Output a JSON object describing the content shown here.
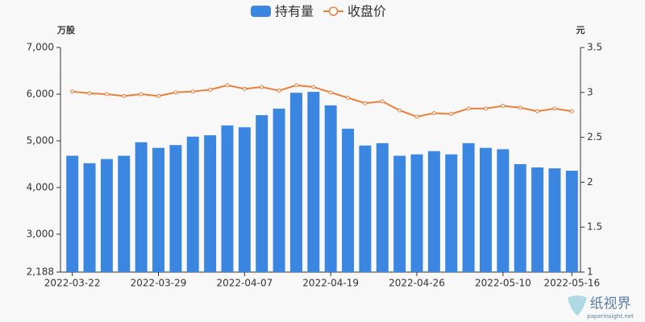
{
  "chart_data": {
    "type": "bar-line",
    "categories": [
      "2022-03-22",
      null,
      null,
      null,
      null,
      "2022-03-29",
      null,
      null,
      null,
      null,
      "2022-04-07",
      null,
      null,
      null,
      null,
      "2022-04-19",
      null,
      null,
      null,
      null,
      "2022-04-26",
      null,
      null,
      null,
      null,
      "2022-05-10",
      null,
      null,
      null,
      "2022-05-16"
    ],
    "series": [
      {
        "name": "持有量",
        "type": "bar",
        "color": "#3a86e0",
        "axis": "y",
        "values": [
          4680,
          4520,
          4610,
          4680,
          4970,
          4850,
          4910,
          5090,
          5120,
          5330,
          5290,
          5550,
          5690,
          6030,
          6050,
          5760,
          5260,
          4900,
          4950,
          4680,
          4710,
          4780,
          4710,
          4950,
          4850,
          4820,
          4500,
          4430,
          4410,
          4360
        ]
      },
      {
        "name": "收盘价",
        "type": "line",
        "color": "#e8803a",
        "axis": "y2",
        "values": [
          3.01,
          2.99,
          2.98,
          2.96,
          2.98,
          2.96,
          3.0,
          3.01,
          3.03,
          3.08,
          3.04,
          3.06,
          3.02,
          3.08,
          3.06,
          3.0,
          2.94,
          2.88,
          2.9,
          2.8,
          2.73,
          2.77,
          2.76,
          2.82,
          2.82,
          2.85,
          2.83,
          2.79,
          2.82,
          2.79
        ]
      }
    ],
    "y_label": "万股",
    "y2_label": "元",
    "ylim": [
      2188,
      7000
    ],
    "yticks": [
      {
        "value": 2188,
        "label": "2,188"
      },
      {
        "value": 3000,
        "label": "3,000"
      },
      {
        "value": 4000,
        "label": "4,000"
      },
      {
        "value": 5000,
        "label": "5,000"
      },
      {
        "value": 6000,
        "label": "6,000"
      },
      {
        "value": 7000,
        "label": "7,000"
      }
    ],
    "y2lim": [
      1,
      3.5
    ],
    "y2ticks": [
      1,
      1.5,
      2,
      2.5,
      3,
      3.5
    ],
    "grid": false,
    "legend": "top"
  },
  "watermark": {
    "name": "纸视界",
    "url": "paperinsight.net"
  }
}
